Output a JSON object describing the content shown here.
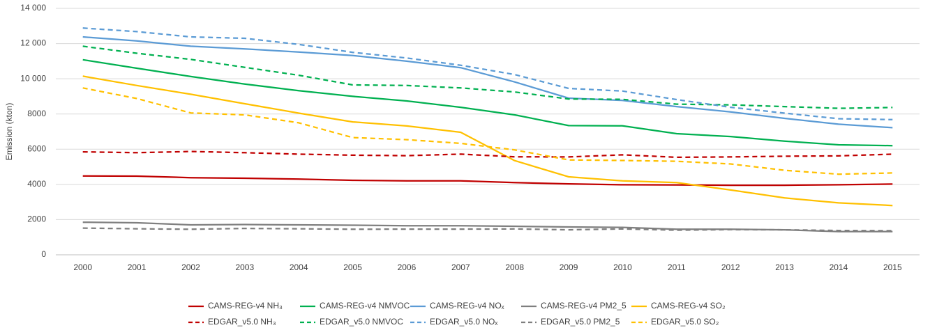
{
  "chart_data": {
    "type": "line",
    "y_label": "Emission (kton)",
    "categories": [
      "2000",
      "2001",
      "2002",
      "2003",
      "2004",
      "2005",
      "2006",
      "2007",
      "2008",
      "2009",
      "2010",
      "2011",
      "2012",
      "2013",
      "2014",
      "2015"
    ],
    "ylim": [
      0,
      14000
    ],
    "yticks": [
      0,
      {
        "value": 2000,
        "label": "2000"
      },
      {
        "value": 4000,
        "label": "4000"
      },
      {
        "value": 6000,
        "label": "6000"
      },
      {
        "value": 8000,
        "label": "8000"
      },
      {
        "value": 10000,
        "label": "10 000"
      },
      {
        "value": 12000,
        "label": "12 000"
      },
      {
        "value": 14000,
        "label": "14 000"
      }
    ],
    "grid": true,
    "legend": "bottom",
    "series": [
      {
        "name": "CAMS-REG-v4 NH₃",
        "color": "#c00000",
        "dashed": false,
        "values": [
          4480,
          4470,
          4380,
          4350,
          4300,
          4230,
          4200,
          4200,
          4100,
          4030,
          3980,
          3970,
          3950,
          3950,
          3980,
          4020
        ]
      },
      {
        "name": "CAMS-REG-v4 NMVOC",
        "color": "#00b050",
        "dashed": false,
        "values": [
          11080,
          10600,
          10130,
          9700,
          9320,
          9000,
          8740,
          8380,
          7950,
          7340,
          7330,
          6880,
          6720,
          6460,
          6250,
          6200
        ]
      },
      {
        "name": "CAMS-REG-v4 NOₓ",
        "color": "#5b9bd5",
        "dashed": false,
        "values": [
          12380,
          12150,
          11850,
          11700,
          11520,
          11320,
          11000,
          10630,
          9820,
          8900,
          8770,
          8420,
          8120,
          7750,
          7420,
          7220
        ]
      },
      {
        "name": "CAMS-REG-v4 PM2_5",
        "color": "#7f7f7f",
        "dashed": false,
        "values": [
          1850,
          1820,
          1700,
          1720,
          1700,
          1680,
          1650,
          1650,
          1620,
          1580,
          1560,
          1450,
          1450,
          1420,
          1320,
          1320
        ]
      },
      {
        "name": "CAMS-REG-v4 SO₂",
        "color": "#ffc000",
        "dashed": false,
        "values": [
          10150,
          9620,
          9120,
          8580,
          8050,
          7550,
          7320,
          6960,
          5350,
          4430,
          4200,
          4100,
          3680,
          3230,
          2950,
          2800
        ]
      },
      {
        "name": "EDGAR_v5.0 NH₃",
        "color": "#c00000",
        "dashed": true,
        "values": [
          5850,
          5800,
          5870,
          5800,
          5720,
          5660,
          5630,
          5720,
          5570,
          5560,
          5680,
          5540,
          5560,
          5600,
          5620,
          5720
        ]
      },
      {
        "name": "EDGAR_v5.0 NMVOC",
        "color": "#00b050",
        "dashed": true,
        "values": [
          11850,
          11450,
          11100,
          10650,
          10200,
          9650,
          9620,
          9480,
          9250,
          8850,
          8830,
          8560,
          8520,
          8420,
          8320,
          8370
        ]
      },
      {
        "name": "EDGAR_v5.0 NOₓ",
        "color": "#5b9bd5",
        "dashed": true,
        "values": [
          12880,
          12680,
          12380,
          12300,
          11950,
          11500,
          11180,
          10770,
          10240,
          9450,
          9300,
          8820,
          8380,
          8050,
          7730,
          7680
        ]
      },
      {
        "name": "EDGAR_v5.0 PM2_5",
        "color": "#7f7f7f",
        "dashed": true,
        "values": [
          1520,
          1480,
          1450,
          1500,
          1480,
          1450,
          1460,
          1460,
          1470,
          1420,
          1470,
          1400,
          1430,
          1420,
          1380,
          1370
        ]
      },
      {
        "name": "EDGAR_v5.0 SO₂",
        "color": "#ffc000",
        "dashed": true,
        "values": [
          9480,
          8880,
          8060,
          7950,
          7500,
          6660,
          6540,
          6330,
          5960,
          5390,
          5360,
          5310,
          5160,
          4800,
          4580,
          4650
        ]
      }
    ]
  }
}
